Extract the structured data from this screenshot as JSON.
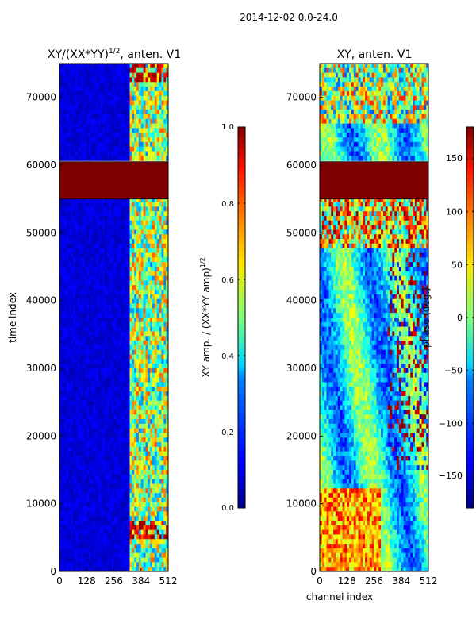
{
  "figure_title": "2014-12-02 0.0-24.0",
  "chart_data": [
    {
      "type": "heatmap",
      "title_base": "XY/(XX*YY)",
      "title_sup": "1/2",
      "title_rest": ", anten. V1",
      "xlabel": "",
      "ylabel": "time index",
      "xlim": [
        0,
        512
      ],
      "ylim": [
        0,
        75000
      ],
      "xticks": [
        0,
        128,
        256,
        384,
        512
      ],
      "yticks": [
        0,
        10000,
        20000,
        30000,
        40000,
        50000,
        60000,
        70000
      ],
      "masked_band": [
        55000,
        60500
      ],
      "colorbar": {
        "label_base": "XY amp. / (XX*YY amp)",
        "label_sup": "1/2",
        "range": [
          0.0,
          1.0
        ],
        "ticks": [
          0.0,
          0.2,
          0.4,
          0.6,
          0.8,
          1.0
        ],
        "tick_labels": [
          "0.0",
          "0.2",
          "0.4",
          "0.6",
          "0.8",
          "1.0"
        ],
        "colormap": "jet"
      }
    },
    {
      "type": "heatmap",
      "title": "XY, anten. V1",
      "xlabel": "channel index",
      "ylabel": "",
      "xlim": [
        0,
        512
      ],
      "ylim": [
        0,
        75000
      ],
      "xticks": [
        0,
        128,
        256,
        384,
        512
      ],
      "yticks": [
        0,
        10000,
        20000,
        30000,
        40000,
        50000,
        60000,
        70000
      ],
      "masked_band": [
        55000,
        60500
      ],
      "colorbar": {
        "label": "phase (deg.)",
        "range": [
          -180,
          180
        ],
        "ticks": [
          -150,
          -100,
          -50,
          0,
          50,
          100,
          150
        ],
        "tick_labels": [
          "−150",
          "−100",
          "−50",
          "0",
          "50",
          "100",
          "150"
        ],
        "colormap": "jet"
      }
    }
  ]
}
